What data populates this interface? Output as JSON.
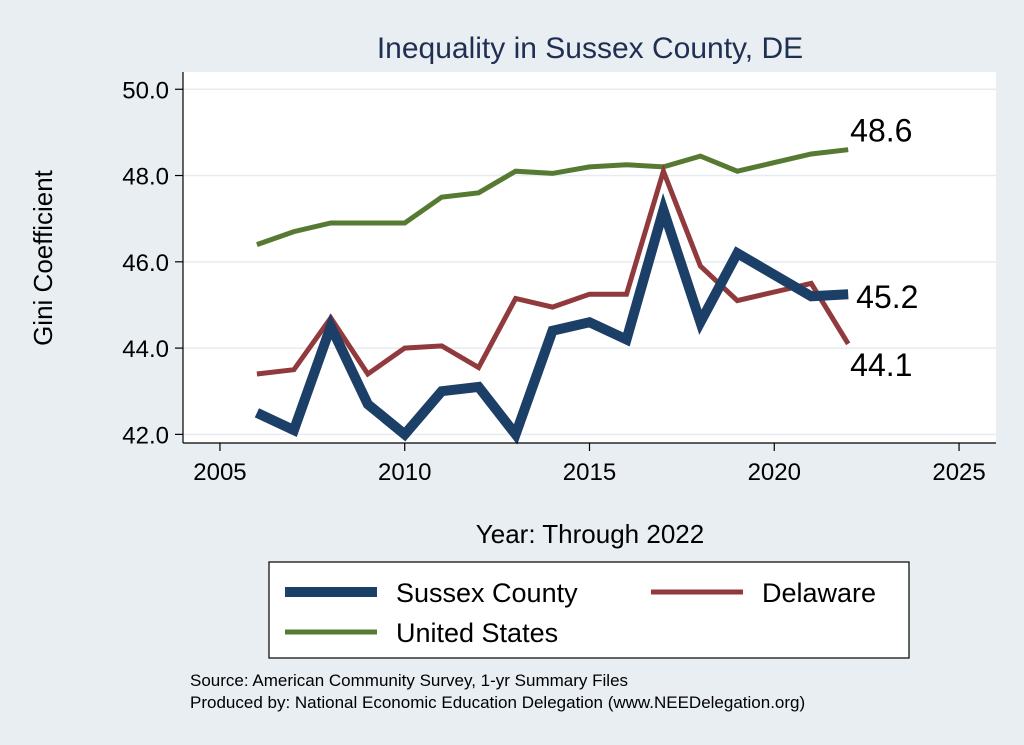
{
  "chart_data": {
    "type": "line",
    "title": "Inequality in Sussex County, DE",
    "xlabel": "Year: Through 2022",
    "ylabel": "Gini Coefficient",
    "xlim": [
      2004,
      2026
    ],
    "ylim": [
      41.8,
      50.4
    ],
    "xticks": [
      2005,
      2010,
      2015,
      2020,
      2025
    ],
    "xtick_labels": [
      "2005",
      "2010",
      "2015",
      "2020",
      "2025"
    ],
    "yticks": [
      42,
      44,
      46,
      48,
      50
    ],
    "ytick_labels": [
      "42.0",
      "44.0",
      "46.0",
      "48.0",
      "50.0"
    ],
    "grid": "horizontal",
    "legend_position": "bottom",
    "series": [
      {
        "name": "Sussex County",
        "color": "#1b3f66",
        "x": [
          2006,
          2007,
          2008,
          2009,
          2010,
          2011,
          2012,
          2013,
          2014,
          2015,
          2016,
          2017,
          2018,
          2019,
          2020,
          2021,
          2022
        ],
        "values": [
          42.5,
          42.1,
          44.5,
          42.7,
          42.0,
          43.0,
          43.1,
          42.0,
          44.4,
          44.6,
          44.2,
          47.2,
          44.6,
          46.2,
          45.7,
          45.2,
          45.25
        ],
        "end_label": "45.2"
      },
      {
        "name": "Delaware",
        "color": "#913a3e",
        "x": [
          2006,
          2007,
          2008,
          2009,
          2010,
          2011,
          2012,
          2013,
          2014,
          2015,
          2016,
          2017,
          2018,
          2019,
          2020,
          2021,
          2022
        ],
        "values": [
          43.4,
          43.5,
          44.7,
          43.4,
          44.0,
          44.05,
          43.55,
          45.15,
          44.95,
          45.25,
          45.25,
          48.1,
          45.9,
          45.1,
          45.3,
          45.5,
          44.1
        ],
        "end_label": "44.1"
      },
      {
        "name": "United States",
        "color": "#577a32",
        "x": [
          2006,
          2007,
          2008,
          2009,
          2010,
          2011,
          2012,
          2013,
          2014,
          2015,
          2016,
          2017,
          2018,
          2019,
          2020,
          2021,
          2022
        ],
        "values": [
          46.4,
          46.7,
          46.9,
          46.9,
          46.9,
          47.5,
          47.6,
          48.1,
          48.05,
          48.2,
          48.25,
          48.2,
          48.45,
          48.1,
          48.3,
          48.5,
          48.6
        ],
        "end_label": "48.6"
      }
    ],
    "notes": [
      "Source: American Community Survey, 1-yr Summary Files",
      "Produced by: National Economic Education Delegation (www.NEEDelegation.org)"
    ]
  }
}
